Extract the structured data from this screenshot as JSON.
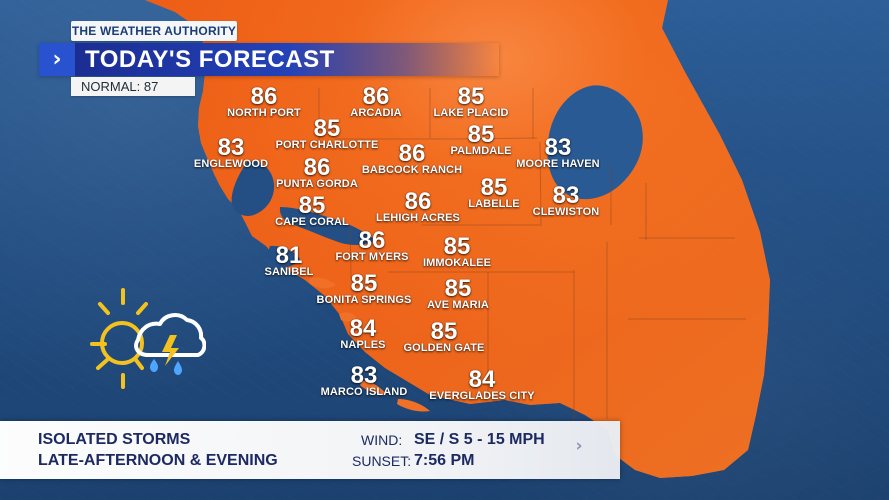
{
  "brand": {
    "label": "THE WEATHER AUTHORITY"
  },
  "header": {
    "title": "TODAY'S FORECAST",
    "normal": "NORMAL: 87",
    "chevron_icon": "chevron-right-icon"
  },
  "map": {
    "land_color": "#f06a1f",
    "lake_color": "#264f89",
    "sea_color": "#244f85",
    "cities": [
      {
        "name": "NORTH PORT",
        "temp": "86"
      },
      {
        "name": "ARCADIA",
        "temp": "86"
      },
      {
        "name": "LAKE PLACID",
        "temp": "85"
      },
      {
        "name": "PORT CHARLOTTE",
        "temp": "85"
      },
      {
        "name": "PALMDALE",
        "temp": "85"
      },
      {
        "name": "ENGLEWOOD",
        "temp": "83"
      },
      {
        "name": "BABCOCK RANCH",
        "temp": "86"
      },
      {
        "name": "MOORE HAVEN",
        "temp": "83"
      },
      {
        "name": "PUNTA GORDA",
        "temp": "86"
      },
      {
        "name": "LABELLE",
        "temp": "85"
      },
      {
        "name": "CAPE CORAL",
        "temp": "85"
      },
      {
        "name": "LEHIGH ACRES",
        "temp": "86"
      },
      {
        "name": "CLEWISTON",
        "temp": "83"
      },
      {
        "name": "SANIBEL",
        "temp": "81"
      },
      {
        "name": "FORT MYERS",
        "temp": "86"
      },
      {
        "name": "IMMOKALEE",
        "temp": "85"
      },
      {
        "name": "BONITA SPRINGS",
        "temp": "85"
      },
      {
        "name": "AVE MARIA",
        "temp": "85"
      },
      {
        "name": "NAPLES",
        "temp": "84"
      },
      {
        "name": "GOLDEN GATE",
        "temp": "85"
      },
      {
        "name": "MARCO ISLAND",
        "temp": "83"
      },
      {
        "name": "EVERGLADES CITY",
        "temp": "84"
      }
    ]
  },
  "weather_icon": {
    "name": "partly-sunny-thunderstorm-icon",
    "sun_color": "#f4c21f",
    "cloud_color": "#ffffff",
    "bolt_color": "#f4c21f",
    "rain_color": "#4ea6ff"
  },
  "footer": {
    "line1": "ISOLATED STORMS",
    "line2": "LATE-AFTERNOON & EVENING",
    "wind_label": "WIND:",
    "wind_value": "SE / S  5 - 15 MPH",
    "sunset_label": "SUNSET:",
    "sunset_value": "7:56 PM",
    "chevron_icon": "chevron-right-icon"
  }
}
